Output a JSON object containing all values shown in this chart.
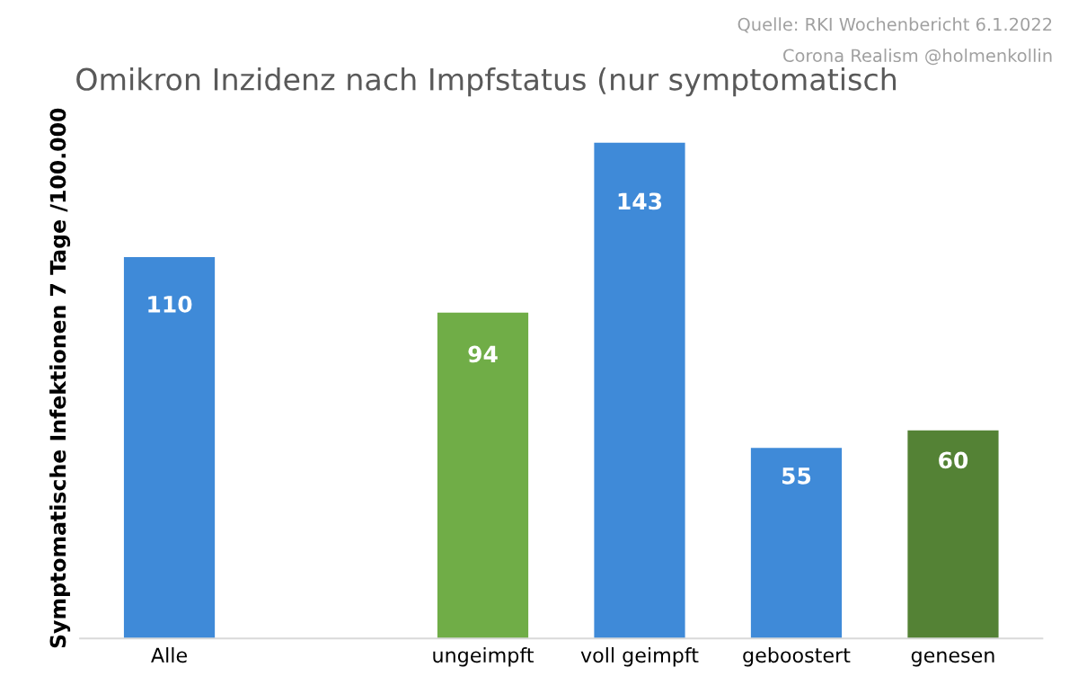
{
  "chart_data": {
    "type": "bar",
    "title": "Omikron Inzidenz nach Impfstatus (nur symptomatisch",
    "ylabel": "Symptomatische Infektionen 7 Tage /100.000",
    "categories": [
      "Alle",
      null,
      "ungeimpft",
      "voll geimpft",
      "geboostert",
      "genesen"
    ],
    "values": [
      110,
      null,
      94,
      143,
      55,
      60
    ],
    "colors": [
      "#3f8ad8",
      "#3f8ad8",
      "#70ad47",
      "#3f8ad8",
      "#3f8ad8",
      "#548235"
    ],
    "data_labels": true,
    "grid": false,
    "legend": false,
    "annotations": [
      "Quelle: RKI Wochenbericht 6.1.2022",
      "Corona Realism @holmenkollin"
    ]
  }
}
